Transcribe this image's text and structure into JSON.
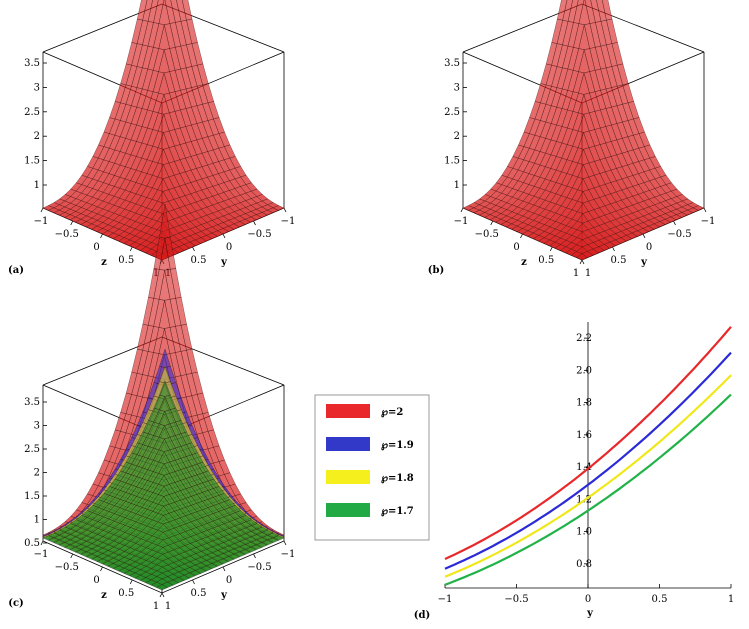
{
  "panels": [
    {
      "label": "(a)",
      "type": "surface3d",
      "ztick_labels": [
        "1",
        "1.5",
        "2",
        "2.5",
        "3",
        "3.5"
      ],
      "x_axis_label": "z",
      "y_axis_label": "y",
      "x_tick_labels": [
        "−1",
        "−0.5",
        "0",
        "0.5",
        "1"
      ],
      "y_tick_labels": [
        "−1",
        "−0.5",
        "0",
        "0.5",
        "1"
      ]
    },
    {
      "label": "(b)",
      "type": "surface3d",
      "ztick_labels": [
        "1",
        "1.5",
        "2",
        "2.5",
        "3",
        "3.5"
      ],
      "x_axis_label": "z",
      "y_axis_label": "y",
      "x_tick_labels": [
        "−1",
        "−0.5",
        "0",
        "0.5",
        "1"
      ],
      "y_tick_labels": [
        "−1",
        "−0.5",
        "0",
        "0.5",
        "1"
      ]
    },
    {
      "label": "(c)",
      "type": "surface3d",
      "ztick_labels": [
        "0.5",
        "1",
        "1.5",
        "2",
        "2.5",
        "3",
        "3.5"
      ],
      "x_axis_label": "z",
      "y_axis_label": "y",
      "x_tick_labels": [
        "−1",
        "−0.5",
        "0",
        "0.5",
        "1"
      ],
      "y_tick_labels": [
        "−1",
        "−0.5",
        "0",
        "0.5",
        "1"
      ]
    }
  ],
  "legend": {
    "entries": [
      {
        "label": "℘=2",
        "color": "#e8282a"
      },
      {
        "label": "℘=1.9",
        "color": "#3238c8"
      },
      {
        "label": "℘=1.8",
        "color": "#f5ef1e"
      },
      {
        "label": "℘=1.7",
        "color": "#22aa44"
      }
    ]
  },
  "chart_data": {
    "label": "(d)",
    "type": "line",
    "xlabel": "y",
    "xlim": [
      -1,
      1
    ],
    "ylim": [
      0.65,
      2.3
    ],
    "x_ticks": [
      "−1",
      "−0.5",
      "0",
      "0.5",
      "1"
    ],
    "y_ticks": [
      "0.8",
      "1.0",
      "1.2",
      "1.4",
      "1.6",
      "1.8",
      "2.0",
      "2.2"
    ],
    "series": [
      {
        "name": "℘=2",
        "color": "#e8282a",
        "x": [
          -1,
          0,
          1
        ],
        "y": [
          0.83,
          1.39,
          2.27
        ]
      },
      {
        "name": "℘=1.9",
        "color": "#2a2ad8",
        "x": [
          -1,
          0,
          1
        ],
        "y": [
          0.77,
          1.29,
          2.11
        ]
      },
      {
        "name": "℘=1.8",
        "color": "#f0e81a",
        "x": [
          -1,
          0,
          1
        ],
        "y": [
          0.72,
          1.21,
          1.97
        ]
      },
      {
        "name": "℘=1.7",
        "color": "#22b24a",
        "x": [
          -1,
          0,
          1
        ],
        "y": [
          0.67,
          1.13,
          1.85
        ]
      }
    ]
  }
}
